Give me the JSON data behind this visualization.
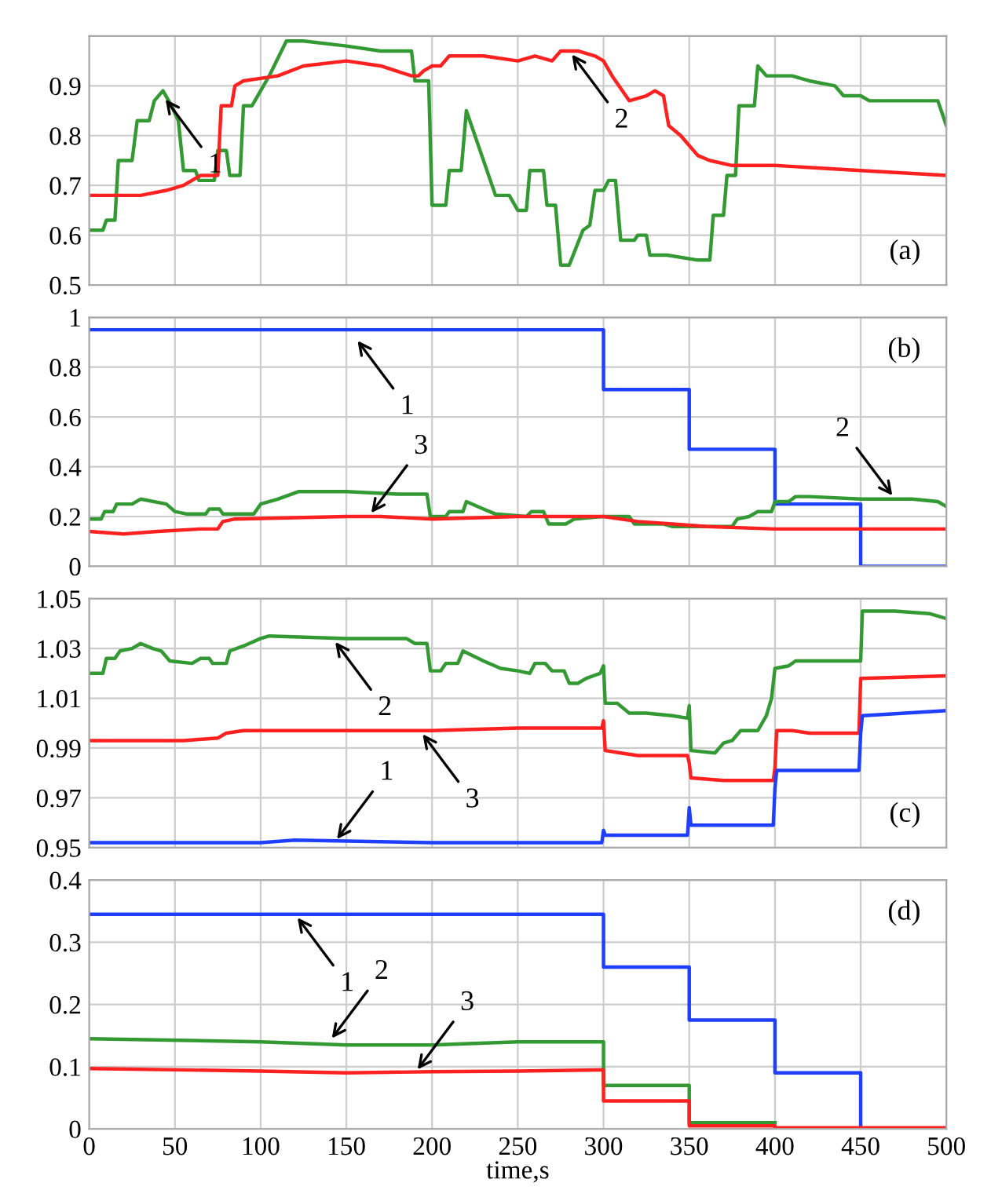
{
  "chart_data": [
    {
      "type": "line",
      "title": "(a)",
      "xlim": [
        0,
        500
      ],
      "xticks": [
        0,
        50,
        100,
        150,
        200,
        250,
        300,
        350,
        400,
        450,
        500
      ],
      "ylim": [
        0.5,
        1.0
      ],
      "yticks": [
        0.5,
        0.6,
        0.7,
        0.8,
        0.9
      ],
      "tick_labels": "y",
      "grid": true,
      "legend": false,
      "series": [
        {
          "color": "#339933",
          "x": [
            0,
            8,
            10,
            15,
            17,
            25,
            28,
            35,
            38,
            43,
            48,
            52,
            55,
            62,
            64,
            73,
            75,
            80,
            82,
            88,
            90,
            95,
            105,
            115,
            125,
            150,
            170,
            188,
            190,
            198,
            200,
            208,
            210,
            217,
            220,
            237,
            245,
            250,
            255,
            257,
            265,
            267,
            272,
            275,
            280,
            288,
            292,
            295,
            300,
            303,
            307,
            310,
            318,
            320,
            325,
            327,
            337,
            355,
            362,
            364,
            370,
            372,
            377,
            379,
            388,
            390,
            395,
            410,
            420,
            435,
            440,
            450,
            455,
            460,
            495,
            500
          ],
          "values": [
            0.61,
            0.61,
            0.63,
            0.63,
            0.75,
            0.75,
            0.83,
            0.83,
            0.87,
            0.89,
            0.86,
            0.83,
            0.73,
            0.73,
            0.71,
            0.71,
            0.77,
            0.77,
            0.72,
            0.72,
            0.86,
            0.86,
            0.92,
            0.99,
            0.99,
            0.98,
            0.97,
            0.97,
            0.91,
            0.91,
            0.66,
            0.66,
            0.73,
            0.73,
            0.85,
            0.68,
            0.68,
            0.65,
            0.65,
            0.73,
            0.73,
            0.66,
            0.66,
            0.54,
            0.54,
            0.61,
            0.62,
            0.69,
            0.69,
            0.71,
            0.71,
            0.59,
            0.59,
            0.6,
            0.6,
            0.56,
            0.56,
            0.55,
            0.55,
            0.64,
            0.64,
            0.72,
            0.72,
            0.86,
            0.86,
            0.94,
            0.92,
            0.92,
            0.91,
            0.9,
            0.88,
            0.88,
            0.87,
            0.87,
            0.87,
            0.82
          ]
        },
        {
          "color": "#ff2020",
          "x": [
            0,
            30,
            45,
            55,
            65,
            75,
            77,
            83,
            85,
            90,
            110,
            125,
            150,
            170,
            188,
            192,
            195,
            200,
            205,
            210,
            230,
            250,
            260,
            270,
            275,
            285,
            295,
            300,
            305,
            315,
            325,
            330,
            335,
            338,
            345,
            355,
            362,
            375,
            400,
            450,
            500
          ],
          "values": [
            0.68,
            0.68,
            0.69,
            0.7,
            0.72,
            0.72,
            0.86,
            0.86,
            0.9,
            0.91,
            0.92,
            0.94,
            0.95,
            0.94,
            0.92,
            0.92,
            0.93,
            0.94,
            0.94,
            0.96,
            0.96,
            0.95,
            0.96,
            0.95,
            0.97,
            0.97,
            0.96,
            0.95,
            0.92,
            0.87,
            0.88,
            0.89,
            0.88,
            0.82,
            0.8,
            0.76,
            0.75,
            0.74,
            0.74,
            0.73,
            0.72
          ]
        }
      ],
      "annotations": [
        {
          "text": "1",
          "x": 43,
          "y": 0.88
        },
        {
          "text": "2",
          "x": 280,
          "y": 0.97
        }
      ]
    },
    {
      "type": "line",
      "title": "(b)",
      "xlim": [
        0,
        500
      ],
      "xticks": [
        0,
        50,
        100,
        150,
        200,
        250,
        300,
        350,
        400,
        450,
        500
      ],
      "ylim": [
        0,
        1
      ],
      "yticks": [
        0,
        0.2,
        0.4,
        0.6,
        0.8,
        1
      ],
      "tick_labels": "y",
      "grid": true,
      "legend": false,
      "series": [
        {
          "color": "#1f3fff",
          "x": [
            0,
            300,
            300,
            350,
            350,
            400,
            400,
            450,
            450,
            500
          ],
          "values": [
            0.95,
            0.95,
            0.71,
            0.71,
            0.47,
            0.47,
            0.25,
            0.25,
            0,
            0
          ]
        },
        {
          "color": "#339933",
          "x": [
            0,
            7,
            9,
            14,
            16,
            25,
            30,
            45,
            50,
            57,
            68,
            70,
            76,
            78,
            96,
            100,
            110,
            122,
            150,
            180,
            197,
            199,
            208,
            210,
            218,
            220,
            230,
            237,
            255,
            258,
            265,
            268,
            278,
            283,
            300,
            315,
            318,
            335,
            340,
            375,
            378,
            385,
            390,
            398,
            400,
            408,
            412,
            420,
            450,
            480,
            495,
            500
          ],
          "values": [
            0.19,
            0.19,
            0.22,
            0.22,
            0.25,
            0.25,
            0.27,
            0.25,
            0.22,
            0.21,
            0.21,
            0.23,
            0.23,
            0.21,
            0.21,
            0.25,
            0.27,
            0.3,
            0.3,
            0.29,
            0.29,
            0.2,
            0.2,
            0.22,
            0.22,
            0.26,
            0.23,
            0.21,
            0.2,
            0.22,
            0.22,
            0.17,
            0.17,
            0.19,
            0.2,
            0.2,
            0.17,
            0.17,
            0.16,
            0.16,
            0.19,
            0.2,
            0.22,
            0.22,
            0.26,
            0.26,
            0.28,
            0.28,
            0.27,
            0.27,
            0.26,
            0.24
          ]
        },
        {
          "color": "#ff2020",
          "x": [
            0,
            20,
            40,
            65,
            75,
            78,
            85,
            150,
            170,
            200,
            250,
            300,
            320,
            340,
            360,
            400,
            450,
            500
          ],
          "values": [
            0.14,
            0.13,
            0.14,
            0.15,
            0.15,
            0.18,
            0.19,
            0.2,
            0.2,
            0.19,
            0.2,
            0.2,
            0.18,
            0.17,
            0.16,
            0.15,
            0.15,
            0.15
          ]
        }
      ],
      "annotations": [
        {
          "text": "1",
          "x": 155,
          "y": 0.92
        },
        {
          "text": "3",
          "x": 163,
          "y": 0.2
        },
        {
          "text": "2",
          "x": 470,
          "y": 0.27
        }
      ]
    },
    {
      "type": "line",
      "title": "(c)",
      "xlim": [
        0,
        500
      ],
      "xticks": [
        0,
        50,
        100,
        150,
        200,
        250,
        300,
        350,
        400,
        450,
        500
      ],
      "ylim": [
        0.95,
        1.05
      ],
      "yticks": [
        0.95,
        0.97,
        0.99,
        1.01,
        1.03,
        1.05
      ],
      "tick_labels": "y",
      "grid": true,
      "legend": false,
      "series": [
        {
          "color": "#339933",
          "x": [
            0,
            8,
            10,
            15,
            18,
            25,
            30,
            37,
            42,
            47,
            60,
            65,
            70,
            72,
            80,
            82,
            90,
            100,
            105,
            150,
            185,
            190,
            197,
            199,
            205,
            208,
            215,
            218,
            230,
            240,
            250,
            257,
            260,
            266,
            270,
            277,
            280,
            285,
            290,
            298,
            300,
            301,
            308,
            315,
            325,
            340,
            349,
            350,
            351,
            365,
            370,
            375,
            380,
            390,
            395,
            398,
            400,
            408,
            412,
            440,
            450,
            451,
            470,
            490,
            500
          ],
          "values": [
            1.02,
            1.02,
            1.026,
            1.026,
            1.029,
            1.03,
            1.032,
            1.03,
            1.029,
            1.025,
            1.024,
            1.026,
            1.026,
            1.024,
            1.024,
            1.029,
            1.031,
            1.034,
            1.035,
            1.034,
            1.034,
            1.032,
            1.032,
            1.021,
            1.021,
            1.024,
            1.024,
            1.029,
            1.025,
            1.022,
            1.021,
            1.02,
            1.024,
            1.024,
            1.021,
            1.021,
            1.016,
            1.016,
            1.018,
            1.02,
            1.023,
            1.008,
            1.008,
            1.004,
            1.004,
            1.003,
            1.002,
            1.007,
            0.989,
            0.988,
            0.992,
            0.993,
            0.997,
            0.997,
            1.003,
            1.01,
            1.022,
            1.023,
            1.025,
            1.025,
            1.025,
            1.045,
            1.045,
            1.044,
            1.042
          ]
        },
        {
          "color": "#ff2020",
          "x": [
            0,
            55,
            75,
            80,
            90,
            200,
            250,
            299,
            300,
            301,
            310,
            320,
            349,
            350,
            351,
            370,
            399,
            400,
            401,
            410,
            420,
            449,
            450,
            500
          ],
          "values": [
            0.993,
            0.993,
            0.994,
            0.996,
            0.997,
            0.997,
            0.998,
            0.998,
            1.001,
            0.989,
            0.988,
            0.987,
            0.987,
            0.984,
            0.978,
            0.977,
            0.977,
            0.982,
            0.997,
            0.997,
            0.996,
            0.996,
            1.018,
            1.019
          ]
        },
        {
          "color": "#1f3fff",
          "x": [
            0,
            100,
            120,
            200,
            299,
            300,
            301,
            349,
            350,
            351,
            399,
            400,
            401,
            420,
            449,
            450,
            451,
            500
          ],
          "values": [
            0.952,
            0.952,
            0.953,
            0.952,
            0.952,
            0.957,
            0.955,
            0.955,
            0.966,
            0.959,
            0.959,
            0.974,
            0.981,
            0.981,
            0.981,
            0.996,
            1.003,
            1.005
          ]
        }
      ],
      "annotations": [
        {
          "text": "2",
          "x": 142,
          "y": 1.034
        },
        {
          "text": "3",
          "x": 193,
          "y": 0.997
        },
        {
          "text": "1",
          "x": 143,
          "y": 0.952
        }
      ]
    },
    {
      "type": "line",
      "title": "(d)",
      "xlabel": "time,s",
      "xlim": [
        0,
        500
      ],
      "xticks": [
        0,
        50,
        100,
        150,
        200,
        250,
        300,
        350,
        400,
        450,
        500
      ],
      "ylim": [
        0,
        0.4
      ],
      "yticks": [
        0,
        0.1,
        0.2,
        0.3,
        0.4
      ],
      "grid": true,
      "legend": false,
      "series": [
        {
          "color": "#1f3fff",
          "x": [
            0,
            300,
            300,
            350,
            350,
            400,
            400,
            450,
            450,
            500
          ],
          "values": [
            0.345,
            0.345,
            0.26,
            0.26,
            0.175,
            0.175,
            0.09,
            0.09,
            0,
            0
          ]
        },
        {
          "color": "#339933",
          "x": [
            0,
            100,
            150,
            200,
            250,
            300,
            300,
            350,
            350,
            400
          ],
          "values": [
            0.145,
            0.14,
            0.135,
            0.135,
            0.14,
            0.14,
            0.07,
            0.07,
            0.01,
            0.01
          ]
        },
        {
          "color": "#ff2020",
          "x": [
            0,
            50,
            100,
            150,
            200,
            250,
            300,
            300,
            350,
            350,
            400,
            400,
            500
          ],
          "values": [
            0.097,
            0.095,
            0.093,
            0.09,
            0.092,
            0.093,
            0.095,
            0.045,
            0.045,
            0.005,
            0.005,
            0.002,
            0.002
          ]
        }
      ],
      "annotations": [
        {
          "text": "1",
          "x": 120,
          "y": 0.345
        },
        {
          "text": "2",
          "x": 140,
          "y": 0.14
        },
        {
          "text": "3",
          "x": 190,
          "y": 0.09
        }
      ]
    }
  ]
}
